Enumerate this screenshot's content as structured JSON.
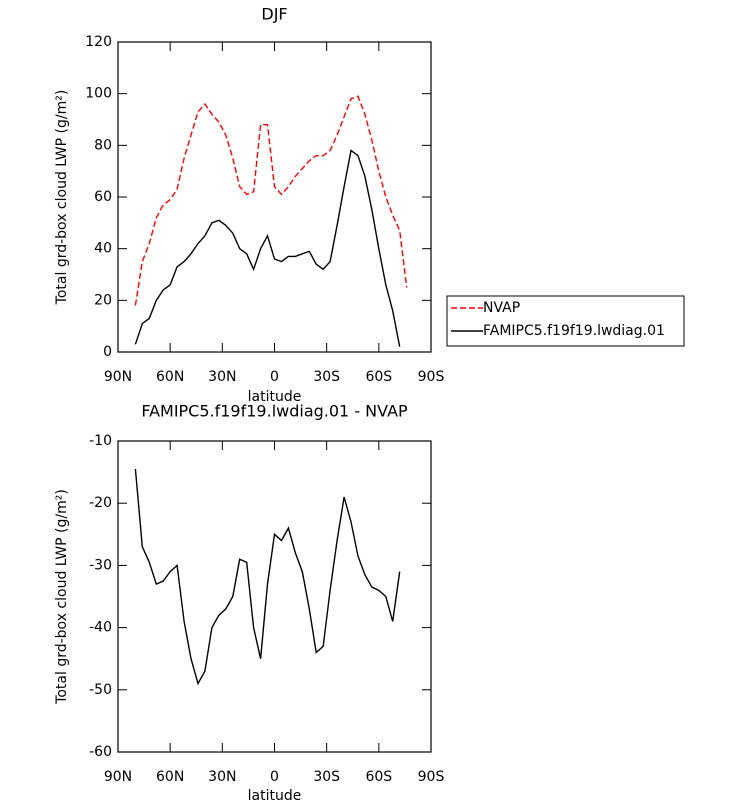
{
  "chart_data": [
    {
      "type": "line",
      "title": "DJF",
      "xlabel": "latitude",
      "ylabel": "Total grd-box cloud LWP (g/m²)",
      "x": [
        80,
        76,
        72,
        68,
        64,
        60,
        56,
        52,
        48,
        44,
        40,
        36,
        32,
        28,
        24,
        20,
        16,
        12,
        8,
        4,
        0,
        -4,
        -8,
        -12,
        -16,
        -20,
        -24,
        -28,
        -32,
        -36,
        -40,
        -44,
        -48,
        -52,
        -56,
        -60,
        -64,
        -68,
        -72,
        -76
      ],
      "series": [
        {
          "name": "NVAP",
          "color": "#ff0000",
          "linestyle": "dashed",
          "values": [
            18,
            35,
            42,
            52,
            57,
            59,
            63,
            75,
            84,
            93,
            96,
            92,
            89,
            84,
            75,
            64,
            61,
            62,
            88,
            88,
            64,
            61,
            64,
            68,
            71,
            74,
            76,
            76,
            78,
            84,
            91,
            98,
            99,
            92,
            82,
            70,
            60,
            53,
            47,
            25
          ]
        },
        {
          "name": "FAMIPC5.f19f19.lwdiag.01",
          "color": "#000000",
          "linestyle": "solid",
          "values": [
            3,
            11,
            13,
            20,
            24,
            26,
            33,
            35,
            38,
            42,
            45,
            50,
            51,
            49,
            46,
            40,
            38,
            32,
            40,
            45,
            36,
            35,
            37,
            37,
            38,
            39,
            34,
            32,
            35,
            49,
            64,
            78,
            76,
            68,
            55,
            40,
            26,
            16,
            2,
            null
          ]
        }
      ],
      "xlim": [
        90,
        -90
      ],
      "xticks": [
        {
          "value": 90,
          "label": "90N"
        },
        {
          "value": 60,
          "label": "60N"
        },
        {
          "value": 30,
          "label": "30N"
        },
        0,
        {
          "value": -30,
          "label": "30S"
        },
        {
          "value": -60,
          "label": "60S"
        },
        {
          "value": -90,
          "label": "90S"
        }
      ],
      "ylim": [
        0,
        120
      ],
      "yticks": [
        0,
        20,
        40,
        60,
        80,
        100,
        120
      ],
      "legend": "right"
    },
    {
      "type": "line",
      "title": "FAMIPC5.f19f19.lwdiag.01 - NVAP",
      "xlabel": "latitude",
      "ylabel": "Total grd-box cloud LWP (g/m²)",
      "x": [
        80,
        76,
        72,
        68,
        64,
        60,
        56,
        52,
        48,
        44,
        40,
        36,
        32,
        28,
        24,
        20,
        16,
        12,
        8,
        4,
        0,
        -4,
        -8,
        -12,
        -16,
        -20,
        -24,
        -28,
        -32,
        -36,
        -40,
        -44,
        -48,
        -52,
        -56,
        -60,
        -64,
        -68,
        -72,
        -76
      ],
      "series": [
        {
          "color": "#000000",
          "linestyle": "solid",
          "values": [
            -14.5,
            -27,
            -29.5,
            -33,
            -32.5,
            -31,
            -30,
            -39,
            -45,
            -49,
            -47,
            -40,
            -38,
            -37,
            -35,
            -29,
            -29.5,
            -40,
            -45,
            -33,
            -25,
            -26,
            -24,
            -28,
            -31,
            -37,
            -44,
            -43,
            -34,
            -26,
            -19,
            -23,
            -28.5,
            -31.5,
            -33.5,
            -34,
            -35,
            -39,
            -31,
            null
          ]
        }
      ],
      "xlim": [
        90,
        -90
      ],
      "xticks": [
        {
          "value": 90,
          "label": "90N"
        },
        {
          "value": 60,
          "label": "60N"
        },
        {
          "value": 30,
          "label": "30N"
        },
        0,
        {
          "value": -30,
          "label": "30S"
        },
        {
          "value": -60,
          "label": "60S"
        },
        {
          "value": -90,
          "label": "90S"
        }
      ],
      "ylim": [
        -60,
        -10
      ],
      "yticks": [
        -60,
        -50,
        -40,
        -30,
        -20,
        -10
      ]
    }
  ]
}
